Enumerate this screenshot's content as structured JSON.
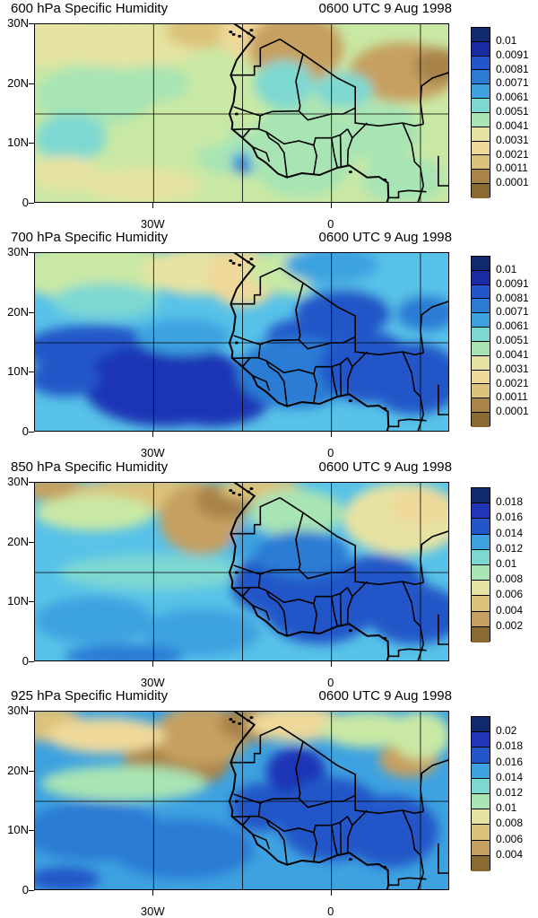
{
  "colormap": [
    "#8a6a30",
    "#a8834a",
    "#c6a060",
    "#dcc27a",
    "#eed89a",
    "#e6e3a2",
    "#c9e8a4",
    "#a8e4b4",
    "#7ed8d2",
    "#58c2e8",
    "#3ea2e0",
    "#2a7cd4",
    "#2356c8",
    "#1f36b6",
    "#1a2aa2",
    "#112a6e"
  ],
  "panels": [
    {
      "title_left": "600 hPa Specific Humidity",
      "title_right": "0600 UTC 9 Aug 1998",
      "ylabels": [
        "30N",
        "20N",
        "10N",
        "0"
      ],
      "xlabels": [
        "30W",
        "0"
      ],
      "colorbar_labels": [
        "0.01",
        "0.0091",
        "0.0081",
        "0.0071",
        "0.0061",
        "0.0051",
        "0.0041",
        "0.0031",
        "0.0021",
        "0.0011",
        "0.0001"
      ],
      "field": "p600"
    },
    {
      "title_left": "700 hPa Specific Humidity",
      "title_right": "0600 UTC 9 Aug 1998",
      "ylabels": [
        "30N",
        "20N",
        "10N",
        "0"
      ],
      "xlabels": [
        "30W",
        "0"
      ],
      "colorbar_labels": [
        "0.01",
        "0.0091",
        "0.0081",
        "0.0071",
        "0.0061",
        "0.0051",
        "0.0041",
        "0.0031",
        "0.0021",
        "0.0011",
        "0.0001"
      ],
      "field": "p700"
    },
    {
      "title_left": "850 hPa Specific Humidity",
      "title_right": "0600 UTC 9 Aug 1998",
      "ylabels": [
        "30N",
        "20N",
        "10N",
        "0"
      ],
      "xlabels": [
        "30W",
        "0"
      ],
      "colorbar_labels": [
        "0.018",
        "0.016",
        "0.014",
        "0.012",
        "0.01",
        "0.008",
        "0.006",
        "0.004",
        "0.002"
      ],
      "field": "p850"
    },
    {
      "title_left": "925 hPa Specific Humidity",
      "title_right": "0600 UTC 9 Aug 1998",
      "ylabels": [
        "30N",
        "20N",
        "10N",
        "0"
      ],
      "xlabels": [
        "30W",
        "0"
      ],
      "colorbar_labels": [
        "0.02",
        "0.018",
        "0.016",
        "0.014",
        "0.012",
        "0.01",
        "0.008",
        "0.006",
        "0.004"
      ],
      "field": "p925"
    }
  ]
}
